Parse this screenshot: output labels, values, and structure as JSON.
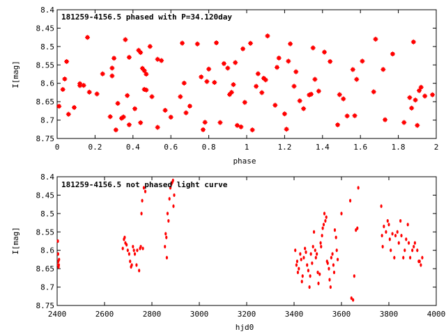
{
  "chart_data": [
    {
      "type": "scatter",
      "title": "181259-4156.5 phased with P=34.120day",
      "xlabel": "phase",
      "ylabel": "I[mag]",
      "xlim": [
        0,
        2
      ],
      "ylim": [
        8.75,
        8.4
      ],
      "y_inverted": true,
      "xticks": [
        "0",
        "0.2",
        "0.4",
        "0.6",
        "0.8",
        "1",
        "1.2",
        "1.4",
        "1.6",
        "1.8",
        "2"
      ],
      "yticks": [
        "8.4",
        "8.45",
        "8.5",
        "8.55",
        "8.6",
        "8.65",
        "8.7",
        "8.75"
      ],
      "marker_color": "#ff0000",
      "x": [
        0.01,
        0.03,
        0.04,
        0.05,
        0.06,
        0.09,
        0.12,
        0.12,
        0.14,
        0.16,
        0.17,
        0.21,
        0.24,
        0.28,
        0.29,
        0.29,
        0.3,
        0.31,
        0.32,
        0.34,
        0.35,
        0.36,
        0.37,
        0.38,
        0.38,
        0.41,
        0.43,
        0.44,
        0.44,
        0.45,
        0.46,
        0.46,
        0.47,
        0.47,
        0.49,
        0.5,
        0.53,
        0.53,
        0.55,
        0.57,
        0.6,
        0.65,
        0.66,
        0.67,
        0.68,
        0.7,
        0.74,
        0.76,
        0.77,
        0.78,
        0.79,
        0.8,
        0.83,
        0.84,
        0.86,
        0.88,
        0.9,
        0.91,
        0.92,
        0.93,
        0.94,
        0.95,
        0.97,
        0.98,
        0.99,
        1.02,
        1.03,
        1.05,
        1.06,
        1.08,
        1.09,
        1.1,
        1.11,
        1.15,
        1.16,
        1.17,
        1.2,
        1.21,
        1.22,
        1.23,
        1.25,
        1.26,
        1.28,
        1.3,
        1.33,
        1.34,
        1.35,
        1.36,
        1.38,
        1.41,
        1.44,
        1.48,
        1.49,
        1.51,
        1.53,
        1.56,
        1.57,
        1.58,
        1.61,
        1.67,
        1.68,
        1.72,
        1.73,
        1.77,
        1.83,
        1.86,
        1.87,
        1.88,
        1.89,
        1.9,
        1.91,
        1.92,
        1.94,
        1.98
      ]
    },
    {
      "type": "scatter",
      "title": "181259-4156.5 not phased light curve",
      "xlabel": "hjd0",
      "ylabel": "I[mag]",
      "xlim": [
        2400,
        4000
      ],
      "ylim": [
        8.75,
        8.4
      ],
      "y_inverted": true,
      "xticks": [
        "2400",
        "2600",
        "2800",
        "3000",
        "3200",
        "3400",
        "3600",
        "3800",
        "4000"
      ],
      "yticks": [
        "8.4",
        "8.45",
        "8.5",
        "8.55",
        "8.6",
        "8.65",
        "8.7",
        "8.75"
      ],
      "marker_color": "#ff0000",
      "x": [
        2403,
        2404,
        2404,
        2405,
        2406,
        2407,
        2408,
        2677,
        2682,
        2685,
        2688,
        2693,
        2698,
        2704,
        2708,
        2712,
        2715,
        2720,
        2724,
        2728,
        2735,
        2738,
        2746,
        2750,
        2753,
        2756,
        2759,
        2762,
        2766,
        2772,
        2855,
        2858,
        2861,
        2863,
        2866,
        2870,
        2874,
        2878,
        2882,
        2886,
        2889,
        2891,
        2894,
        3405,
        3410,
        3413,
        3416,
        3420,
        3426,
        3430,
        3433,
        3436,
        3441,
        3446,
        3450,
        3455,
        3460,
        3465,
        3468,
        3471,
        3476,
        3480,
        3484,
        3489,
        3492,
        3496,
        3500,
        3503,
        3508,
        3512,
        3514,
        3518,
        3521,
        3525,
        3528,
        3532,
        3536,
        3539,
        3542,
        3547,
        3550,
        3554,
        3557,
        3562,
        3566,
        3569,
        3572,
        3577,
        3580,
        3584,
        3600,
        3637,
        3642,
        3649,
        3654,
        3661,
        3667,
        3671,
        3768,
        3771,
        3774,
        3779,
        3788,
        3795,
        3800,
        3804,
        3808,
        3815,
        3823,
        3828,
        3836,
        3842,
        3849,
        3853,
        3861,
        3867,
        3873,
        3880,
        3884,
        3890,
        3899,
        3905,
        3910,
        3920,
        3926,
        3930,
        3935,
        3941
      ],
      "y": [
        8.575,
        8.61,
        8.64,
        8.63,
        8.645,
        8.64,
        8.625,
        8.595,
        8.57,
        8.565,
        8.58,
        8.585,
        8.6,
        8.61,
        8.63,
        8.645,
        8.64,
        8.59,
        8.6,
        8.61,
        8.64,
        8.6,
        8.655,
        8.595,
        8.59,
        8.5,
        8.465,
        8.595,
        8.43,
        8.44,
        8.59,
        8.555,
        8.565,
        8.62,
        8.5,
        8.52,
        8.46,
        8.43,
        8.42,
        8.415,
        8.41,
        8.48,
        8.45,
        8.6,
        8.64,
        8.63,
        8.66,
        8.65,
        8.61,
        8.625,
        8.685,
        8.67,
        8.62,
        8.595,
        8.605,
        8.64,
        8.655,
        8.7,
        8.67,
        8.61,
        8.635,
        8.59,
        8.55,
        8.6,
        8.62,
        8.61,
        8.66,
        8.69,
        8.665,
        8.58,
        8.59,
        8.56,
        8.54,
        8.53,
        8.5,
        8.52,
        8.51,
        8.63,
        8.635,
        8.65,
        8.68,
        8.7,
        8.62,
        8.61,
        8.64,
        8.66,
        8.545,
        8.565,
        8.6,
        8.625,
        8.5,
        8.465,
        8.73,
        8.735,
        8.67,
        8.545,
        8.54,
        8.43,
        8.48,
        8.56,
        8.59,
        8.535,
        8.55,
        8.52,
        8.53,
        8.57,
        8.6,
        8.555,
        8.62,
        8.56,
        8.55,
        8.58,
        8.52,
        8.56,
        8.62,
        8.6,
        8.57,
        8.53,
        8.58,
        8.62,
        8.6,
        8.59,
        8.58,
        8.6,
        8.63,
        8.63,
        8.64,
        8.62
      ]
    }
  ]
}
